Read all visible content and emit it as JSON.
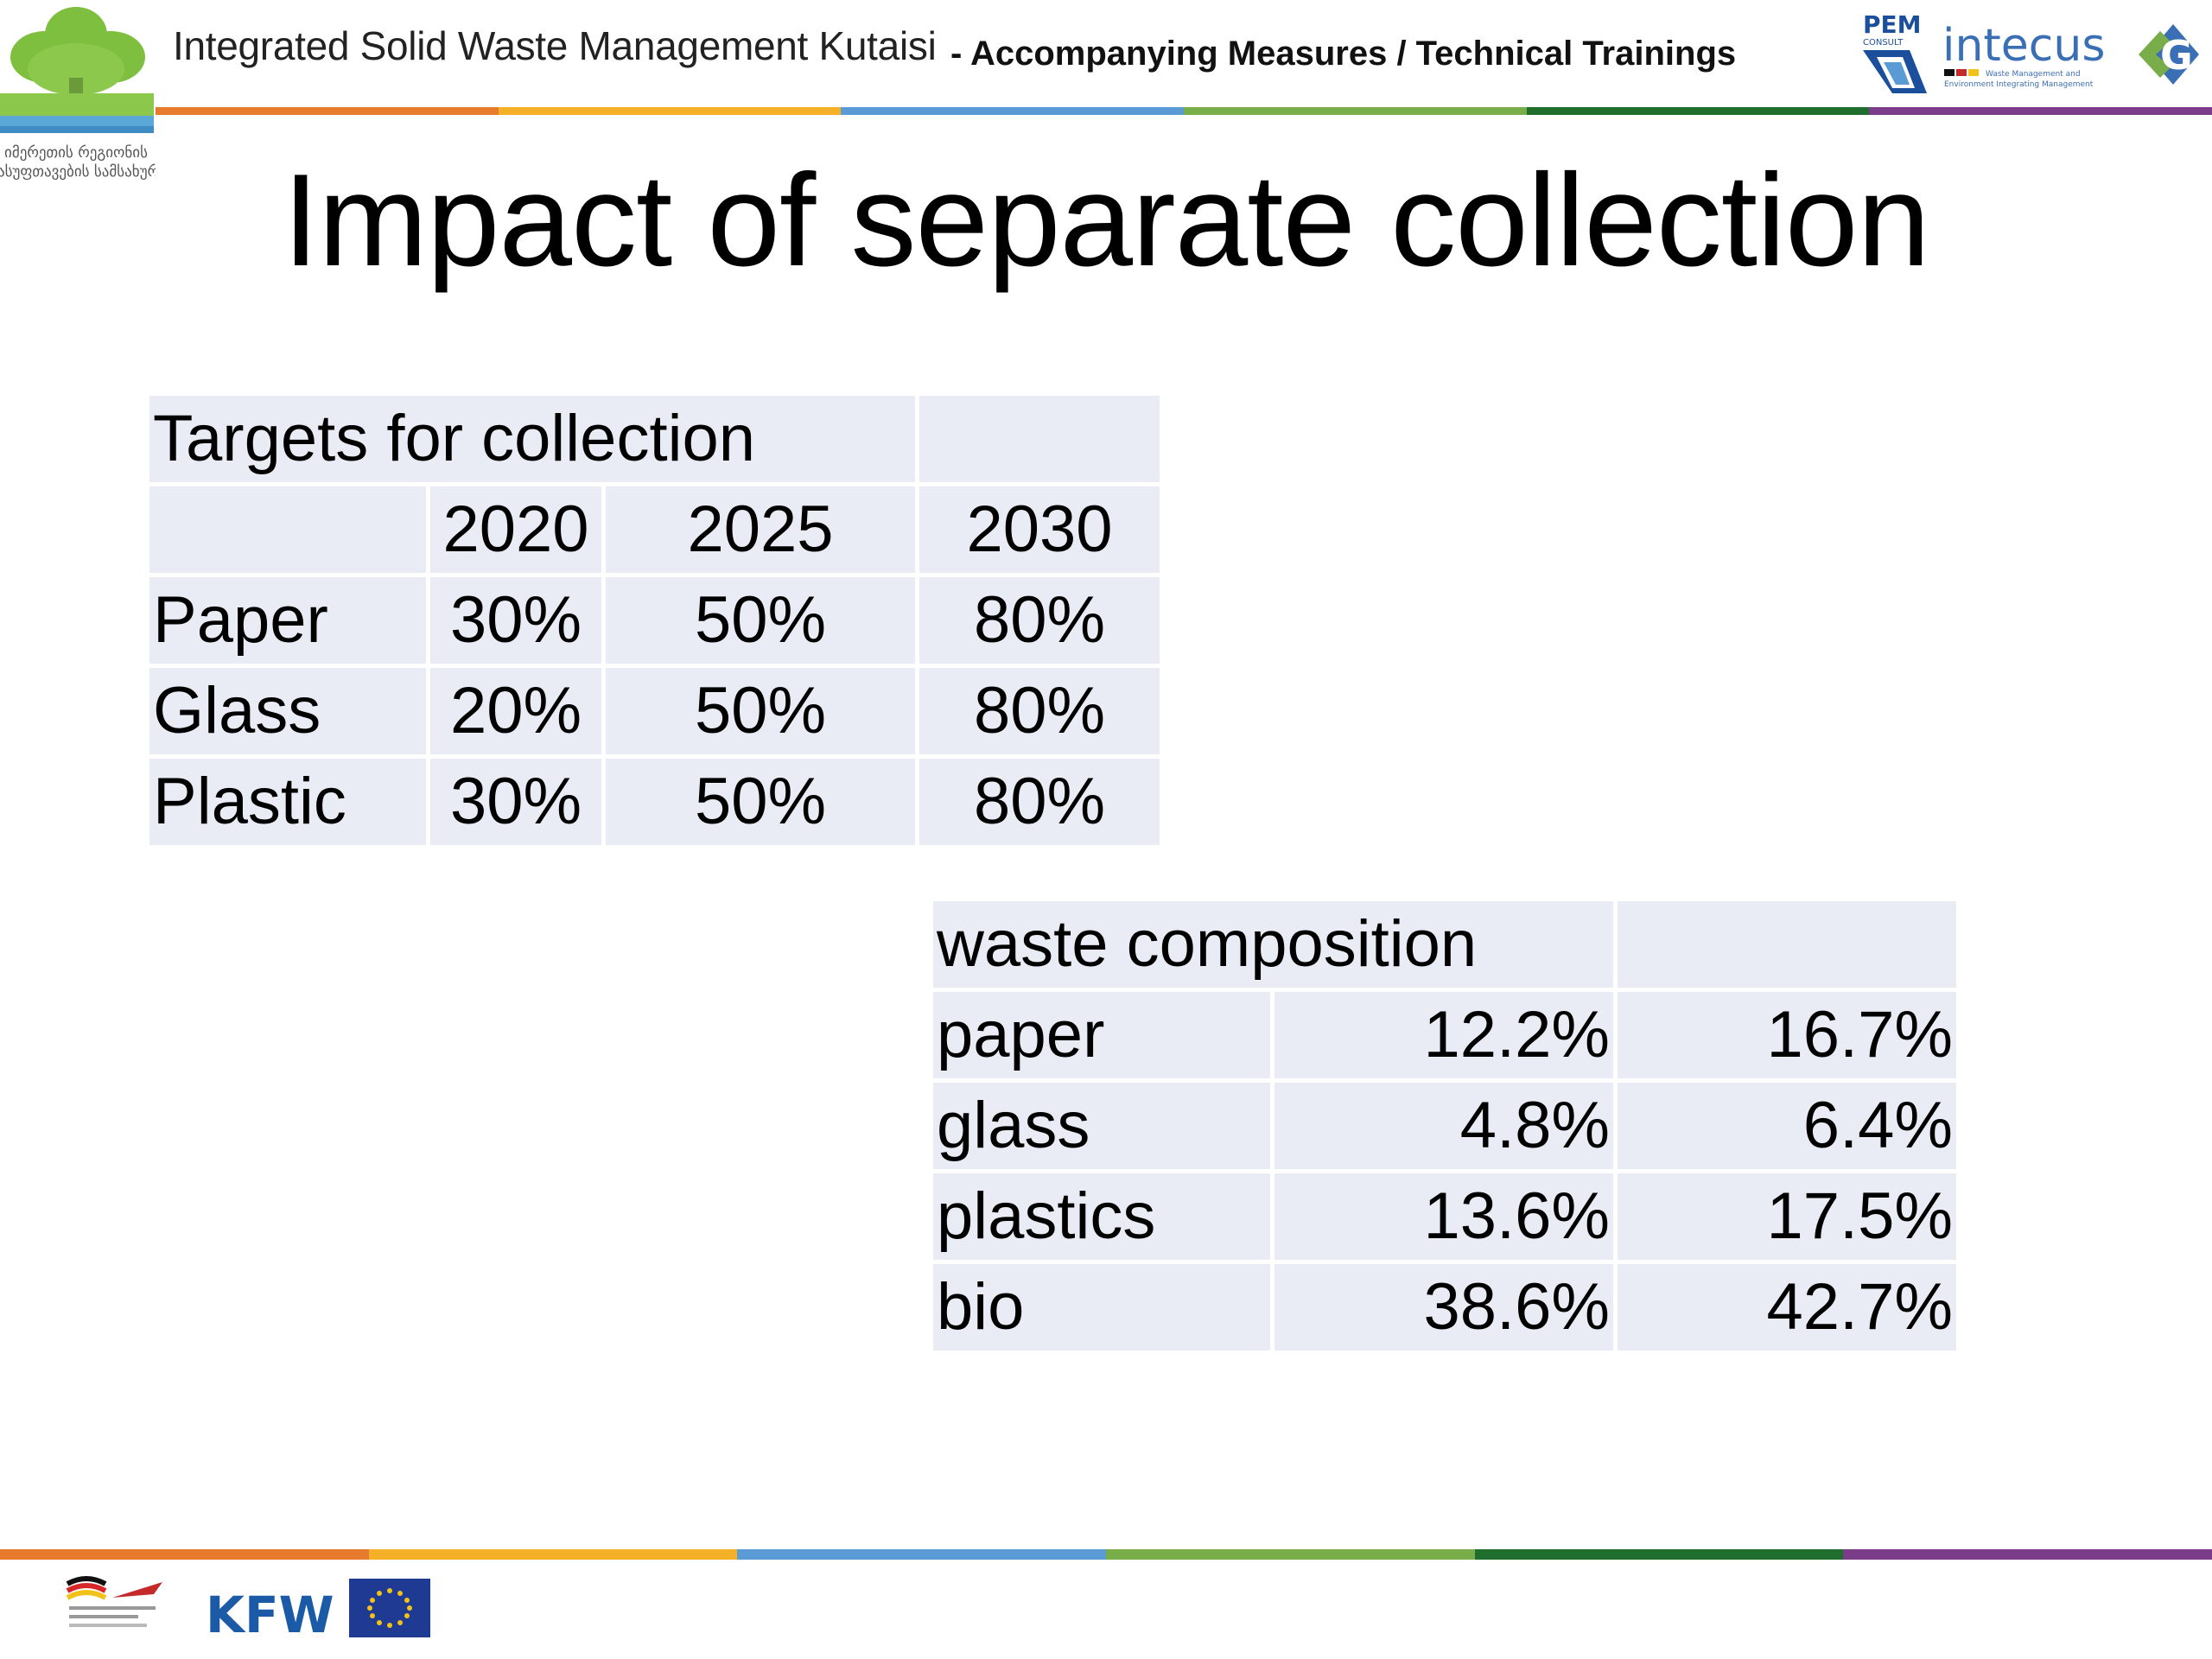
{
  "header": {
    "title": "Integrated Solid Waste Management Kutaisi",
    "subtitle": "- Accompanying Measures / Technical Trainings",
    "left_logo": {
      "icon": "tree-logo",
      "caption_lines": [
        "იმერეთის რეგიონის",
        "დასუფთავების სამსახური"
      ]
    },
    "partner_logos": {
      "pem": "PEM",
      "pem_sub": "CONSULT",
      "intecus": "intecus",
      "intecus_sub": "Waste Management and Environment Integrating Management",
      "g_icon": "g-logo-icon"
    }
  },
  "slide": {
    "title": "Impact of separate collection"
  },
  "targets_table": {
    "title": "Targets for collection",
    "years": [
      "2020",
      "2025",
      "2030"
    ],
    "rows": [
      {
        "material": "Paper",
        "values": [
          "30%",
          "50%",
          "80%"
        ]
      },
      {
        "material": "Glass",
        "values": [
          "20%",
          "50%",
          "80%"
        ]
      },
      {
        "material": "Plastic",
        "values": [
          "30%",
          "50%",
          "80%"
        ]
      }
    ]
  },
  "composition_table": {
    "title": "waste composition",
    "rows": [
      {
        "material": "paper",
        "values": [
          "12.2%",
          "16.7%"
        ]
      },
      {
        "material": "glass",
        "values": [
          "4.8%",
          "6.4%"
        ]
      },
      {
        "material": "plastics",
        "values": [
          "13.6%",
          "17.5%"
        ]
      },
      {
        "material": "bio",
        "values": [
          "38.6%",
          "42.7%"
        ]
      }
    ]
  },
  "footer": {
    "kfw": "KFW",
    "german_coop_icon": "german-cooperation-logo",
    "eu_icon": "eu-flag-icon"
  },
  "colors": {
    "bar": [
      "#e87a2e",
      "#f4b128",
      "#5b9bd5",
      "#79ad4a",
      "#1f6e2e",
      "#7b3d8a"
    ],
    "table_bg": "#e9ecf4",
    "kfw_blue": "#1b5aa6",
    "eu_blue": "#1f3a93"
  }
}
